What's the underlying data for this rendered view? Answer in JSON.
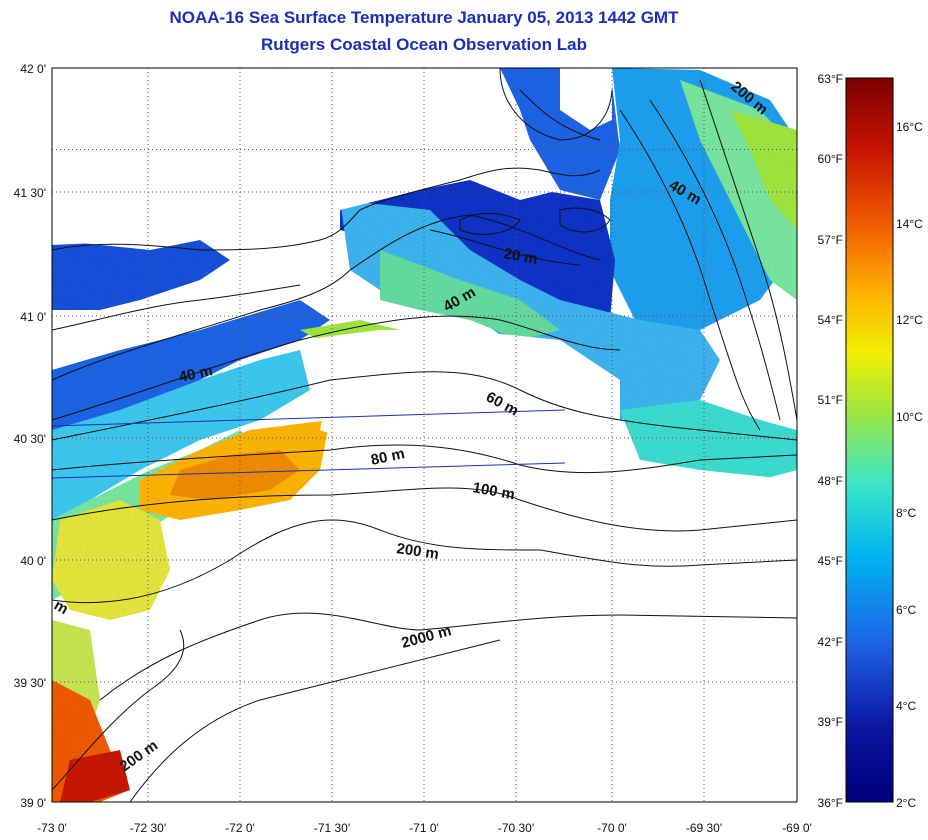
{
  "title": "NOAA-16 Sea Surface Temperature January 05, 2013 1442 GMT",
  "subtitle": "Rutgers Coastal Ocean Observation Lab",
  "latitude_labels": [
    "42 0'",
    "41 30'",
    "41 0'",
    "40 30'",
    "40 0'",
    "39 30'",
    "39 0'"
  ],
  "longitude_labels": [
    "-73 0'",
    "-72 30'",
    "-72 0'",
    "-71 30'",
    "-71 0'",
    "-70 30'",
    "-70 0'",
    "-69 30'",
    "-69 0'"
  ],
  "depth_contour_labels": [
    "20 m",
    "40 m",
    "40 m",
    "40 m",
    "60 m",
    "80 m",
    "100 m",
    "200 m",
    "200 m",
    "200 m",
    "2000 m",
    "m"
  ],
  "colorbar": {
    "fahrenheit_labels": [
      "63°F",
      "60°F",
      "57°F",
      "54°F",
      "51°F",
      "48°F",
      "45°F",
      "42°F",
      "39°F",
      "36°F"
    ],
    "celsius_labels": [
      "16°C",
      "14°C",
      "12°C",
      "10°C",
      "8°C",
      "6°C",
      "4°C",
      "2°C"
    ],
    "colors": [
      "#7a0000",
      "#c81400",
      "#f05a00",
      "#ffb400",
      "#f0f000",
      "#a0e640",
      "#3ce6c8",
      "#00b4f0",
      "#1e64e6",
      "#0a14a0",
      "#00007a"
    ]
  }
}
